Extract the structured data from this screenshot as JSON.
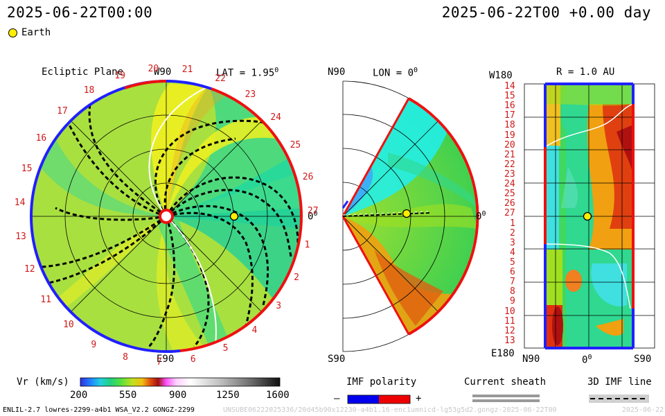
{
  "header": {
    "timestamp_left": "2025-06-22T00:00",
    "timestamp_right": "2025-06-22T00 +0.00 day"
  },
  "legend": {
    "earth_label": "Earth",
    "earth_color": "#ffee00"
  },
  "ecliptic": {
    "title": "Ecliptic Plane",
    "lat_label": "LAT = 1.95",
    "lat_sup": "0",
    "w90": "W90",
    "e90": "E90",
    "zero": "0",
    "zero_sup": "0",
    "carrington_labels": [
      "20",
      "21",
      "22",
      "23",
      "24",
      "25",
      "26",
      "27",
      "1",
      "2",
      "3",
      "4",
      "5",
      "6",
      "7",
      "8",
      "9",
      "10",
      "11",
      "12",
      "13",
      "14",
      "15",
      "16",
      "17",
      "18",
      "19"
    ]
  },
  "meridional": {
    "n90": "N90",
    "lon_label": "LON = 0",
    "lon_sup": "0",
    "s90": "S90",
    "zero": "0",
    "zero_sup": "0"
  },
  "radial": {
    "title": "R = 1.0 AU",
    "w180": "W180",
    "e180": "E180",
    "bottom_left": "N90",
    "bottom_mid": "0",
    "bottom_mid_sup": "0",
    "bottom_right": "S90",
    "rows": [
      "14",
      "15",
      "16",
      "17",
      "18",
      "19",
      "20",
      "21",
      "22",
      "23",
      "24",
      "25",
      "26",
      "27",
      "1",
      "2",
      "3",
      "4",
      "5",
      "6",
      "7",
      "8",
      "9",
      "10",
      "11",
      "12",
      "13"
    ]
  },
  "colorbar": {
    "label": "Vr (km/s)",
    "ticks": [
      "200",
      "550",
      "900",
      "1250",
      "1600"
    ],
    "colors": [
      "#2020e0",
      "#20a0ff",
      "#20e0e0",
      "#20d080",
      "#40e040",
      "#a0e020",
      "#e0e020",
      "#f0a010",
      "#e03010",
      "#a01010",
      "#ff60ff",
      "#ffd0ff",
      "#ffffff",
      "#d0d0d0",
      "#a0a0a0",
      "#707070",
      "#404040",
      "#101010"
    ]
  },
  "imf": {
    "title": "IMF polarity",
    "minus": "–",
    "plus": "+",
    "neg_color": "#0000ee",
    "pos_color": "#ee0000"
  },
  "sheath": {
    "title": "Current sheath"
  },
  "imf_line": {
    "title": "3D IMF line"
  },
  "footer": {
    "model": "ENLIL-2.7 lowres-2299-a4b1 WSA_V2.2 GONGZ-2299",
    "run_id": "UNSUBE06222025336/20d45b90x12230-a4b1.16-enc1umnicd-lg53g5d2.gongz-2025-06-22T00",
    "run_date": "2025-06-22"
  }
}
